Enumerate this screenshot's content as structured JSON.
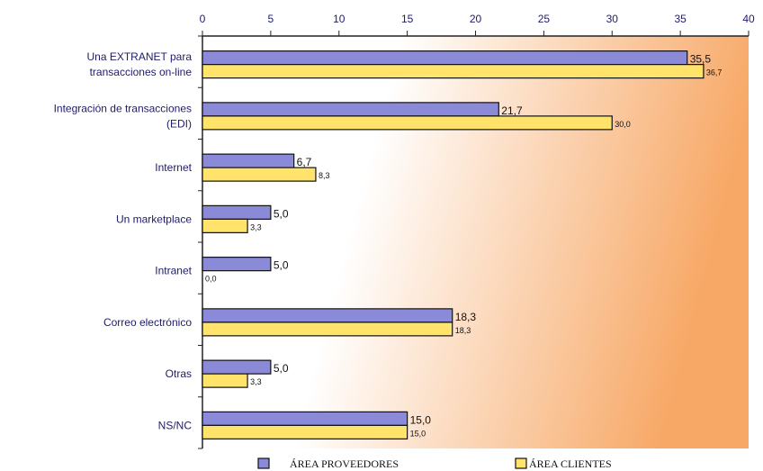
{
  "chart_data": {
    "type": "bar",
    "orientation": "horizontal",
    "categories": [
      [
        "Una EXTRANET para",
        "transacciones on-line"
      ],
      [
        "Integración de transacciones",
        "(EDI)"
      ],
      [
        "Internet"
      ],
      [
        "Un marketplace"
      ],
      [
        "Intranet"
      ],
      [
        "Correo electrónico"
      ],
      [
        "Otras"
      ],
      [
        "NS/NC"
      ]
    ],
    "series": [
      {
        "name": "ÁREA PROVEEDORES",
        "values": [
          35.5,
          21.7,
          6.7,
          5.0,
          5.0,
          18.3,
          5.0,
          15.0
        ],
        "labels": [
          "35,5",
          "21,7",
          "6,7",
          "5,0",
          "5,0",
          "18,3",
          "5,0",
          "15,0"
        ],
        "color": "#8a8ad8"
      },
      {
        "name": "ÁREA CLIENTES",
        "values": [
          36.7,
          30.0,
          8.3,
          3.3,
          0.0,
          18.3,
          3.3,
          15.0
        ],
        "labels": [
          "36,7",
          "30,0",
          "8,3",
          "3,3",
          "0,0",
          "18,3",
          "3,3",
          "15,0"
        ],
        "color": "#ffe36b"
      }
    ],
    "xticks": [
      "0",
      "5",
      "10",
      "15",
      "20",
      "25",
      "30",
      "35",
      "40"
    ],
    "xlim": [
      0,
      40
    ],
    "axis_position": "top",
    "legend_position": "bottom",
    "grid": false,
    "plot_background": [
      "#ffffff",
      "#f7a866"
    ]
  }
}
